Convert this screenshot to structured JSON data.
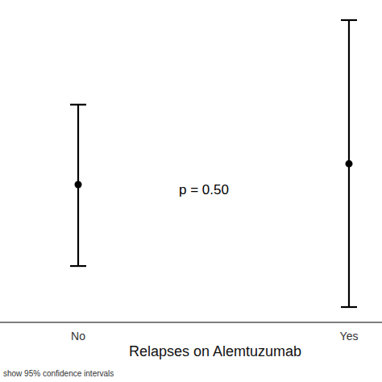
{
  "chart_data": {
    "type": "scatter",
    "x_label": "Relapses on Alemtuzumab",
    "categories": [
      "No",
      "Yes"
    ],
    "values": [
      45,
      51.8
    ],
    "ci_low": [
      18.4,
      5
    ],
    "ci_high": [
      71.1,
      98.7
    ],
    "ylim": [
      0,
      100
    ],
    "annotation": "p = 0.50",
    "note": "show 95% confidence intervals",
    "tick_labels": "x",
    "color": "#000000"
  }
}
